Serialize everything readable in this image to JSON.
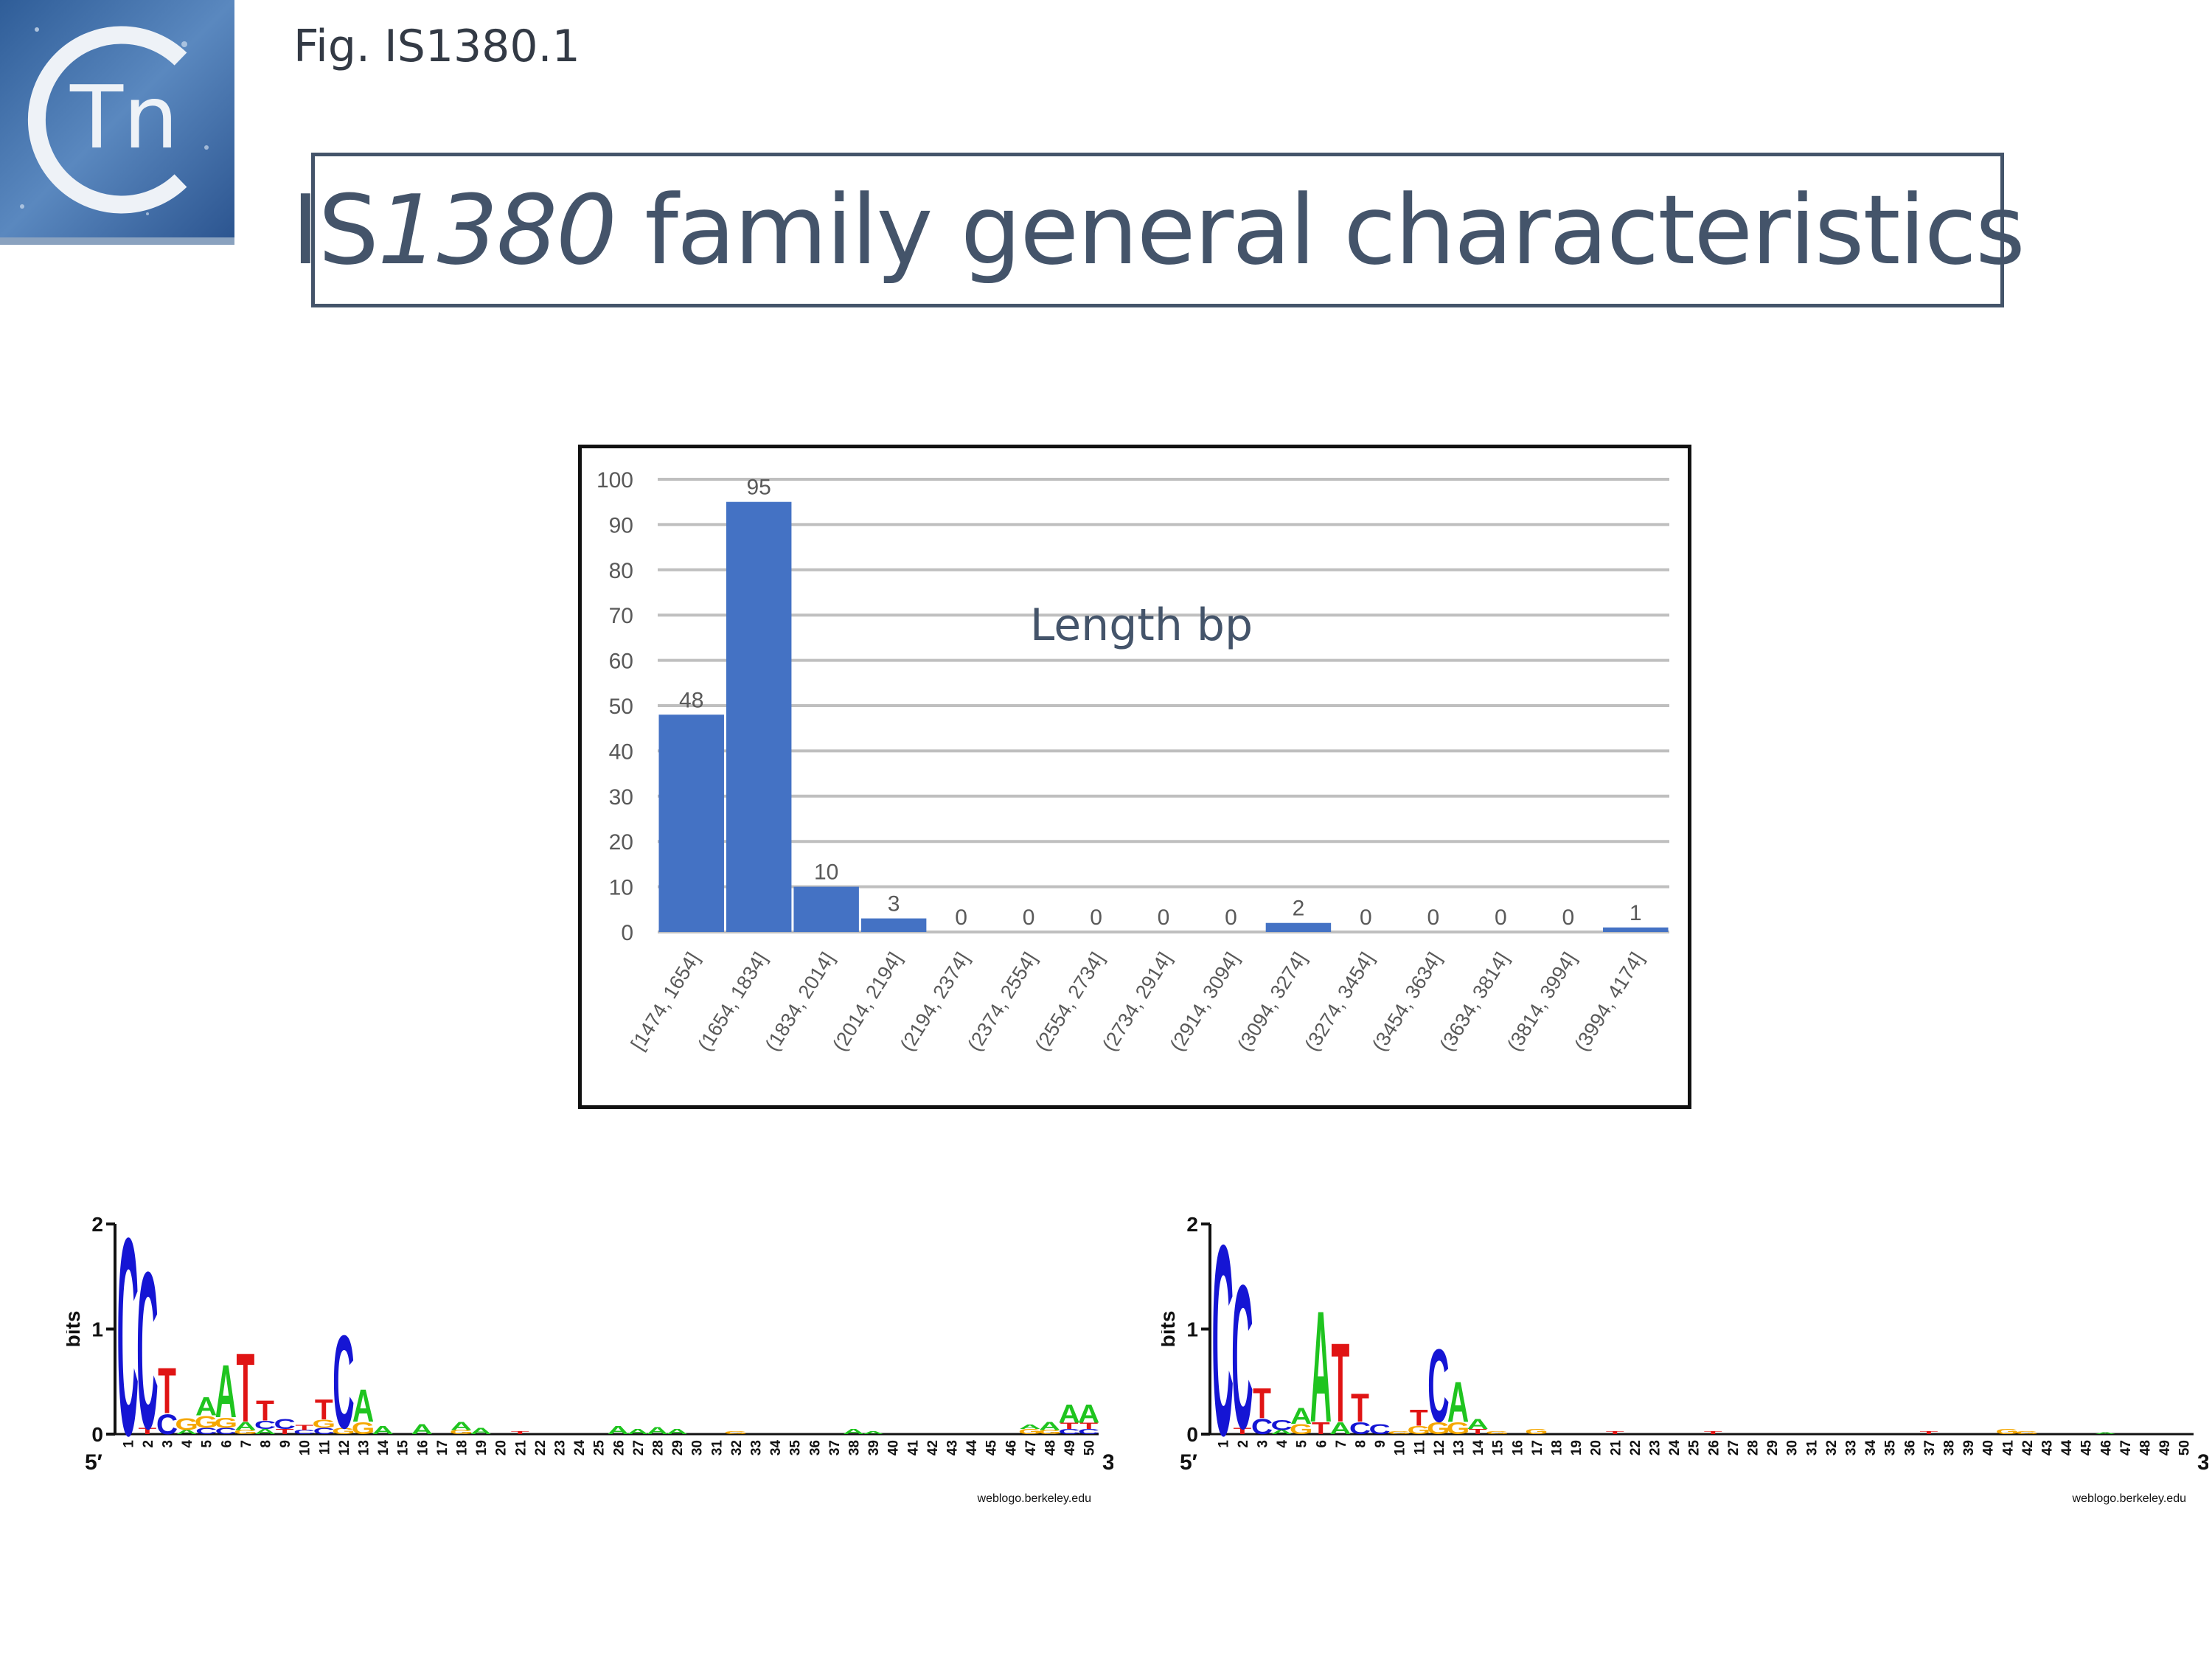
{
  "figure_label": "Fig. IS1380.1",
  "title": {
    "prefix": "IS",
    "italic": "1380",
    "suffix": " family general characteristics"
  },
  "colors": {
    "title": "#44546a",
    "bar": "#4472c4",
    "grid": "#bfbfbf",
    "logo_bg": "#3a6aa6",
    "A": "#1fc41f",
    "C": "#1515d4",
    "G": "#f5a700",
    "T": "#e01414"
  },
  "chart_data": [
    {
      "type": "bar",
      "title": "",
      "annotation": "Length bp",
      "xlabel": "",
      "ylabel": "",
      "ylim": [
        0,
        100
      ],
      "yticks": [
        0,
        10,
        20,
        30,
        40,
        50,
        60,
        70,
        80,
        90,
        100
      ],
      "grid": true,
      "categories": [
        "[1474, 1654]",
        "(1654, 1834]",
        "(1834, 2014]",
        "(2014, 2194]",
        "(2194, 2374]",
        "(2374, 2554]",
        "(2554, 2734]",
        "(2734, 2914]",
        "(2914, 3094]",
        "(3094, 3274]",
        "(3274, 3454]",
        "(3454, 3634]",
        "(3634, 3814]",
        "(3814, 3994]",
        "(3994, 4174]"
      ],
      "values": [
        48,
        95,
        10,
        3,
        0,
        0,
        0,
        0,
        0,
        2,
        0,
        0,
        0,
        0,
        1
      ]
    },
    {
      "type": "sequence-logo",
      "ylabel": "bits",
      "yticks": [
        0,
        1,
        2
      ],
      "ylim": [
        0,
        2
      ],
      "five_prime": "5′",
      "three_prime": "3′",
      "credit": "weblogo.berkeley.edu",
      "positions": [
        1,
        2,
        3,
        4,
        5,
        6,
        7,
        8,
        9,
        10,
        11,
        12,
        13,
        14,
        15,
        16,
        17,
        18,
        19,
        20,
        21,
        22,
        23,
        24,
        25,
        26,
        27,
        28,
        29,
        30,
        31,
        32,
        33,
        34,
        35,
        36,
        37,
        38,
        39,
        40,
        41,
        42,
        43,
        44,
        45,
        46,
        47,
        48,
        49,
        50
      ],
      "stacks": [
        {
          "pos": 1,
          "letters": [
            {
              "l": "C",
              "h": 1.95
            }
          ]
        },
        {
          "pos": 2,
          "letters": [
            {
              "l": "T",
              "h": 0.06
            },
            {
              "l": "C",
              "h": 1.55
            }
          ]
        },
        {
          "pos": 3,
          "letters": [
            {
              "l": "C",
              "h": 0.2
            },
            {
              "l": "T",
              "h": 0.45
            }
          ]
        },
        {
          "pos": 4,
          "letters": [
            {
              "l": "A",
              "h": 0.04
            },
            {
              "l": "G",
              "h": 0.12
            }
          ]
        },
        {
          "pos": 5,
          "letters": [
            {
              "l": "C",
              "h": 0.06
            },
            {
              "l": "G",
              "h": 0.12
            },
            {
              "l": "A",
              "h": 0.18
            }
          ]
        },
        {
          "pos": 6,
          "letters": [
            {
              "l": "C",
              "h": 0.06
            },
            {
              "l": "G",
              "h": 0.1
            },
            {
              "l": "A",
              "h": 0.52
            }
          ]
        },
        {
          "pos": 7,
          "letters": [
            {
              "l": "G",
              "h": 0.04
            },
            {
              "l": "A",
              "h": 0.08
            },
            {
              "l": "T",
              "h": 0.68
            }
          ]
        },
        {
          "pos": 8,
          "letters": [
            {
              "l": "A",
              "h": 0.05
            },
            {
              "l": "C",
              "h": 0.08
            },
            {
              "l": "T",
              "h": 0.2
            }
          ]
        },
        {
          "pos": 9,
          "letters": [
            {
              "l": "T",
              "h": 0.05
            },
            {
              "l": "C",
              "h": 0.1
            }
          ]
        },
        {
          "pos": 10,
          "letters": [
            {
              "l": "C",
              "h": 0.04
            },
            {
              "l": "T",
              "h": 0.05
            }
          ]
        },
        {
          "pos": 11,
          "letters": [
            {
              "l": "C",
              "h": 0.06
            },
            {
              "l": "G",
              "h": 0.08
            },
            {
              "l": "T",
              "h": 0.2
            }
          ]
        },
        {
          "pos": 12,
          "letters": [
            {
              "l": "G",
              "h": 0.06
            },
            {
              "l": "C",
              "h": 0.92
            }
          ]
        },
        {
          "pos": 13,
          "letters": [
            {
              "l": "G",
              "h": 0.12
            },
            {
              "l": "A",
              "h": 0.32
            }
          ]
        },
        {
          "pos": 14,
          "letters": [
            {
              "l": "A",
              "h": 0.08
            }
          ]
        },
        {
          "pos": 16,
          "letters": [
            {
              "l": "A",
              "h": 0.1
            }
          ]
        },
        {
          "pos": 18,
          "letters": [
            {
              "l": "G",
              "h": 0.04
            },
            {
              "l": "A",
              "h": 0.08
            }
          ]
        },
        {
          "pos": 19,
          "letters": [
            {
              "l": "A",
              "h": 0.06
            }
          ]
        },
        {
          "pos": 21,
          "letters": [
            {
              "l": "T",
              "h": 0.03
            }
          ]
        },
        {
          "pos": 26,
          "letters": [
            {
              "l": "A",
              "h": 0.08
            }
          ]
        },
        {
          "pos": 27,
          "letters": [
            {
              "l": "A",
              "h": 0.05
            }
          ]
        },
        {
          "pos": 28,
          "letters": [
            {
              "l": "A",
              "h": 0.07
            }
          ]
        },
        {
          "pos": 29,
          "letters": [
            {
              "l": "A",
              "h": 0.05
            }
          ]
        },
        {
          "pos": 32,
          "letters": [
            {
              "l": "G",
              "h": 0.03
            }
          ]
        },
        {
          "pos": 38,
          "letters": [
            {
              "l": "A",
              "h": 0.05
            }
          ]
        },
        {
          "pos": 39,
          "letters": [
            {
              "l": "A",
              "h": 0.03
            }
          ]
        },
        {
          "pos": 47,
          "letters": [
            {
              "l": "G",
              "h": 0.05
            },
            {
              "l": "A",
              "h": 0.04
            }
          ]
        },
        {
          "pos": 48,
          "letters": [
            {
              "l": "G",
              "h": 0.04
            },
            {
              "l": "A",
              "h": 0.08
            }
          ]
        },
        {
          "pos": 49,
          "letters": [
            {
              "l": "C",
              "h": 0.05
            },
            {
              "l": "T",
              "h": 0.06
            },
            {
              "l": "A",
              "h": 0.18
            }
          ]
        },
        {
          "pos": 50,
          "letters": [
            {
              "l": "C",
              "h": 0.05
            },
            {
              "l": "T",
              "h": 0.06
            },
            {
              "l": "A",
              "h": 0.18
            }
          ]
        }
      ]
    },
    {
      "type": "sequence-logo",
      "ylabel": "bits",
      "yticks": [
        0,
        1,
        2
      ],
      "ylim": [
        0,
        2
      ],
      "five_prime": "5′",
      "three_prime": "3′",
      "credit": "weblogo.berkeley.edu",
      "positions": [
        1,
        2,
        3,
        4,
        5,
        6,
        7,
        8,
        9,
        10,
        11,
        12,
        13,
        14,
        15,
        16,
        17,
        18,
        19,
        20,
        21,
        22,
        23,
        24,
        25,
        26,
        27,
        28,
        29,
        30,
        31,
        32,
        33,
        34,
        35,
        36,
        37,
        38,
        39,
        40,
        41,
        42,
        43,
        44,
        45,
        46,
        47,
        48,
        49,
        50
      ],
      "stacks": [
        {
          "pos": 1,
          "letters": [
            {
              "l": "C",
              "h": 1.88
            }
          ]
        },
        {
          "pos": 2,
          "letters": [
            {
              "l": "T",
              "h": 0.06
            },
            {
              "l": "C",
              "h": 1.42
            }
          ]
        },
        {
          "pos": 3,
          "letters": [
            {
              "l": "C",
              "h": 0.15
            },
            {
              "l": "T",
              "h": 0.3
            }
          ]
        },
        {
          "pos": 4,
          "letters": [
            {
              "l": "A",
              "h": 0.04
            },
            {
              "l": "C",
              "h": 0.1
            }
          ]
        },
        {
          "pos": 5,
          "letters": [
            {
              "l": "G",
              "h": 0.1
            },
            {
              "l": "A",
              "h": 0.16
            }
          ]
        },
        {
          "pos": 6,
          "letters": [
            {
              "l": "T",
              "h": 0.12
            },
            {
              "l": "A",
              "h": 1.1
            }
          ]
        },
        {
          "pos": 7,
          "letters": [
            {
              "l": "A",
              "h": 0.12
            },
            {
              "l": "T",
              "h": 0.78
            }
          ]
        },
        {
          "pos": 8,
          "letters": [
            {
              "l": "C",
              "h": 0.12
            },
            {
              "l": "T",
              "h": 0.28
            }
          ]
        },
        {
          "pos": 9,
          "letters": [
            {
              "l": "C",
              "h": 0.1
            }
          ]
        },
        {
          "pos": 10,
          "letters": [
            {
              "l": "G",
              "h": 0.03
            }
          ]
        },
        {
          "pos": 11,
          "letters": [
            {
              "l": "G",
              "h": 0.08
            },
            {
              "l": "T",
              "h": 0.16
            }
          ]
        },
        {
          "pos": 12,
          "letters": [
            {
              "l": "G",
              "h": 0.12
            },
            {
              "l": "C",
              "h": 0.72
            }
          ]
        },
        {
          "pos": 13,
          "letters": [
            {
              "l": "G",
              "h": 0.12
            },
            {
              "l": "A",
              "h": 0.4
            }
          ]
        },
        {
          "pos": 14,
          "letters": [
            {
              "l": "T",
              "h": 0.05
            },
            {
              "l": "A",
              "h": 0.1
            }
          ]
        },
        {
          "pos": 15,
          "letters": [
            {
              "l": "G",
              "h": 0.03
            }
          ]
        },
        {
          "pos": 17,
          "letters": [
            {
              "l": "G",
              "h": 0.05
            }
          ]
        },
        {
          "pos": 21,
          "letters": [
            {
              "l": "T",
              "h": 0.03
            }
          ]
        },
        {
          "pos": 26,
          "letters": [
            {
              "l": "T",
              "h": 0.03
            }
          ]
        },
        {
          "pos": 37,
          "letters": [
            {
              "l": "T",
              "h": 0.03
            }
          ]
        },
        {
          "pos": 41,
          "letters": [
            {
              "l": "G",
              "h": 0.05
            }
          ]
        },
        {
          "pos": 42,
          "letters": [
            {
              "l": "G",
              "h": 0.03
            }
          ]
        },
        {
          "pos": 46,
          "letters": [
            {
              "l": "A",
              "h": 0.02
            }
          ]
        }
      ]
    }
  ]
}
